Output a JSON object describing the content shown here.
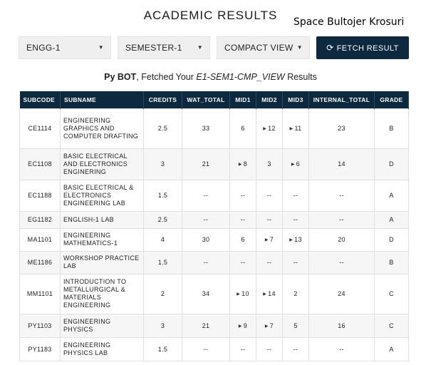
{
  "header": {
    "title": "ACADEMIC RESULTS",
    "overlay_text": "Space Bultojer Krosuri"
  },
  "controls": {
    "branch": "ENGG-1",
    "semester": "SEMESTER-1",
    "view": "COMPACT VIEW",
    "fetch_label": "FETCH RESULT"
  },
  "status": {
    "bot": "Py BOT",
    "prefix": ", Fetched Your ",
    "code": "E1-SEM1-CMP_VIEW",
    "suffix": " Results"
  },
  "table": {
    "columns": [
      "SUBCODE",
      "SUBNAME",
      "CREDITS",
      "WAT_TOTAL",
      "MID1",
      "MID2",
      "MID3",
      "INTERNAL_TOTAL",
      "GRADE"
    ],
    "rows": [
      {
        "subcode": "CE1114",
        "subname": "ENGINEERING GRAPHICS AND COMPUTER DRAFTING",
        "credits": "2.5",
        "wat_total": "33",
        "mid1": "6",
        "mid2": "12",
        "mid3": "11",
        "internal_total": "23",
        "grade": "B",
        "arrows": [
          "mid2",
          "mid3"
        ]
      },
      {
        "subcode": "EC1108",
        "subname": "BASIC ELECTRICAL AND ELECTRONICS ENGINERING",
        "credits": "3",
        "wat_total": "21",
        "mid1": "8",
        "mid2": "3",
        "mid3": "6",
        "internal_total": "14",
        "grade": "D",
        "arrows": [
          "mid1",
          "mid3"
        ]
      },
      {
        "subcode": "EC1188",
        "subname": "BASIC ELECTRICAL & ELECTRONICS ENGINEERING LAB",
        "credits": "1.5",
        "wat_total": "--",
        "mid1": "--",
        "mid2": "--",
        "mid3": "--",
        "internal_total": "--",
        "grade": "A",
        "arrows": []
      },
      {
        "subcode": "EG1182",
        "subname": "ENGLISH-1 LAB",
        "credits": "2.5",
        "wat_total": "--",
        "mid1": "--",
        "mid2": "--",
        "mid3": "--",
        "internal_total": "--",
        "grade": "A",
        "arrows": []
      },
      {
        "subcode": "MA1101",
        "subname": "ENGINEERING MATHEMATICS-1",
        "credits": "4",
        "wat_total": "30",
        "mid1": "6",
        "mid2": "7",
        "mid3": "13",
        "internal_total": "20",
        "grade": "D",
        "arrows": [
          "mid2",
          "mid3"
        ]
      },
      {
        "subcode": "ME1186",
        "subname": "WORKSHOP PRACTICE LAB",
        "credits": "1.5",
        "wat_total": "--",
        "mid1": "--",
        "mid2": "--",
        "mid3": "--",
        "internal_total": "--",
        "grade": "B",
        "arrows": []
      },
      {
        "subcode": "MM1101",
        "subname": "INTRODUCTION TO METALLURGICAL & MATERIALS ENGINEERING",
        "credits": "2",
        "wat_total": "34",
        "mid1": "10",
        "mid2": "14",
        "mid3": "2",
        "internal_total": "24",
        "grade": "C",
        "arrows": [
          "mid1",
          "mid2"
        ]
      },
      {
        "subcode": "PY1103",
        "subname": "ENGINEERING PHYSICS",
        "credits": "3",
        "wat_total": "21",
        "mid1": "9",
        "mid2": "7",
        "mid3": "5",
        "internal_total": "16",
        "grade": "C",
        "arrows": [
          "mid1",
          "mid2"
        ]
      },
      {
        "subcode": "PY1183",
        "subname": "ENGINEERING PHYSICS LAB",
        "credits": "1.5",
        "wat_total": "--",
        "mid1": "--",
        "mid2": "--",
        "mid3": "--",
        "internal_total": "--",
        "grade": "A",
        "arrows": []
      }
    ]
  },
  "colors": {
    "header_bg": "#0c2940",
    "select_bg": "#efefef"
  }
}
